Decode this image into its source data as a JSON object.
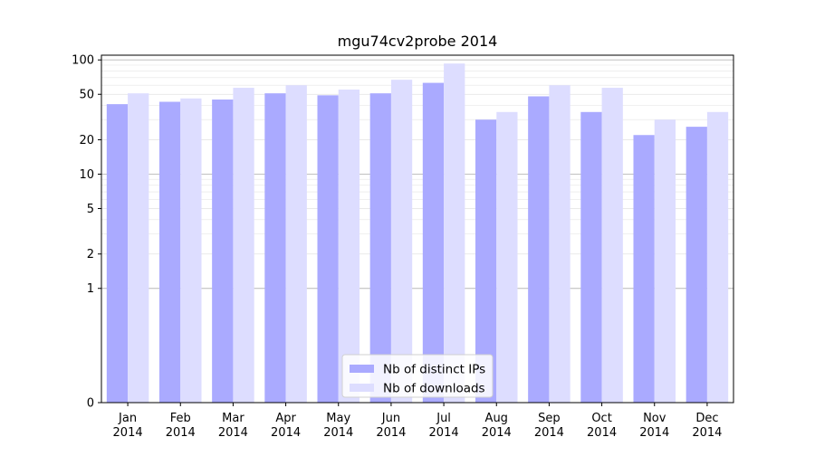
{
  "chart_data": {
    "type": "bar",
    "title": "mgu74cv2probe 2014",
    "xlabel": "",
    "ylabel": "",
    "yscale": "symlog",
    "ylim": [
      0,
      110
    ],
    "yticks": [
      0,
      1,
      2,
      5,
      10,
      20,
      50,
      100
    ],
    "ytick_labels": [
      "0",
      "1",
      "2",
      "5",
      "10",
      "20",
      "50",
      "100"
    ],
    "categories": [
      "Jan\n2014",
      "Feb\n2014",
      "Mar\n2014",
      "Apr\n2014",
      "May\n2014",
      "Jun\n2014",
      "Jul\n2014",
      "Aug\n2014",
      "Sep\n2014",
      "Oct\n2014",
      "Nov\n2014",
      "Dec\n2014"
    ],
    "series": [
      {
        "name": "Nb of distinct IPs",
        "color": "#aaaaff",
        "values": [
          41,
          43,
          45,
          51,
          49,
          51,
          63,
          30,
          48,
          35,
          22,
          26
        ]
      },
      {
        "name": "Nb of downloads",
        "color": "#ddddff",
        "values": [
          51,
          46,
          57,
          60,
          55,
          67,
          93,
          35,
          60,
          57,
          30,
          35
        ]
      }
    ],
    "grid": true,
    "legend_position": "lower center"
  }
}
